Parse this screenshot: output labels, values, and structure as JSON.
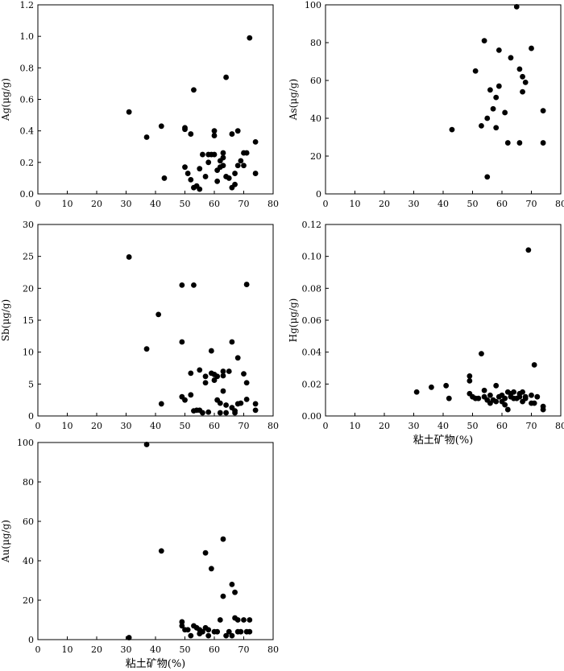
{
  "chart_data": [
    {
      "type": "scatter",
      "ylabel": "Ag(μg/g)",
      "xlabel": "",
      "xlim": [
        0,
        80
      ],
      "ylim": [
        0,
        1.2
      ],
      "xticks": [
        "0",
        "10",
        "20",
        "30",
        "40",
        "50",
        "60",
        "70",
        "80"
      ],
      "yticks": [
        "0.0",
        "0.2",
        "0.4",
        "0.6",
        "0.8",
        "1.0",
        "1.2"
      ],
      "points": [
        [
          31,
          0.52
        ],
        [
          37,
          0.36
        ],
        [
          42,
          0.43
        ],
        [
          43,
          0.1
        ],
        [
          50,
          0.42
        ],
        [
          50,
          0.41
        ],
        [
          50,
          0.17
        ],
        [
          51,
          0.13
        ],
        [
          52,
          0.38
        ],
        [
          52,
          0.09
        ],
        [
          53,
          0.66
        ],
        [
          53,
          0.04
        ],
        [
          54,
          0.05
        ],
        [
          55,
          0.03
        ],
        [
          55,
          0.16
        ],
        [
          56,
          0.25
        ],
        [
          57,
          0.11
        ],
        [
          58,
          0.2
        ],
        [
          58,
          0.25
        ],
        [
          59,
          0.25
        ],
        [
          60,
          0.37
        ],
        [
          60,
          0.4
        ],
        [
          60,
          0.25
        ],
        [
          61,
          0.15
        ],
        [
          61,
          0.08
        ],
        [
          62,
          0.21
        ],
        [
          62,
          0.17
        ],
        [
          63,
          0.26
        ],
        [
          63,
          0.18
        ],
        [
          63,
          0.23
        ],
        [
          64,
          0.11
        ],
        [
          64,
          0.74
        ],
        [
          65,
          0.1
        ],
        [
          66,
          0.38
        ],
        [
          66,
          0.04
        ],
        [
          67,
          0.06
        ],
        [
          67,
          0.13
        ],
        [
          68,
          0.4
        ],
        [
          68,
          0.18
        ],
        [
          69,
          0.21
        ],
        [
          70,
          0.26
        ],
        [
          70,
          0.18
        ],
        [
          71,
          0.26
        ],
        [
          72,
          0.99
        ],
        [
          74,
          0.33
        ],
        [
          74,
          0.13
        ]
      ]
    },
    {
      "type": "scatter",
      "ylabel": "As(μg/g)",
      "xlabel": "",
      "xlim": [
        0,
        80
      ],
      "ylim": [
        0,
        100
      ],
      "xticks": [
        "0",
        "10",
        "20",
        "30",
        "40",
        "50",
        "60",
        "70",
        "80"
      ],
      "yticks": [
        "0",
        "20",
        "40",
        "60",
        "80",
        "100"
      ],
      "points": [
        [
          43,
          34
        ],
        [
          51,
          65
        ],
        [
          53,
          36
        ],
        [
          54,
          81
        ],
        [
          55,
          40
        ],
        [
          55,
          9
        ],
        [
          56,
          55
        ],
        [
          57,
          45
        ],
        [
          58,
          35
        ],
        [
          58,
          51
        ],
        [
          59,
          57
        ],
        [
          59,
          76
        ],
        [
          61,
          43
        ],
        [
          62,
          27
        ],
        [
          63,
          72
        ],
        [
          65,
          99
        ],
        [
          66,
          27
        ],
        [
          66,
          66
        ],
        [
          67,
          62
        ],
        [
          67,
          54
        ],
        [
          68,
          59
        ],
        [
          70,
          77
        ],
        [
          74,
          44
        ],
        [
          74,
          27
        ]
      ]
    },
    {
      "type": "scatter",
      "ylabel": "Sb(μg/g)",
      "xlabel": "",
      "xlim": [
        0,
        80
      ],
      "ylim": [
        0,
        30
      ],
      "xticks": [
        "0",
        "10",
        "20",
        "30",
        "40",
        "50",
        "60",
        "70",
        "80"
      ],
      "yticks": [
        "0",
        "5",
        "10",
        "15",
        "20",
        "25",
        "30"
      ],
      "points": [
        [
          31,
          24.9
        ],
        [
          37,
          10.5
        ],
        [
          41,
          15.9
        ],
        [
          42,
          1.9
        ],
        [
          49,
          20.5
        ],
        [
          49,
          11.6
        ],
        [
          49,
          3.0
        ],
        [
          50,
          2.5
        ],
        [
          52,
          6.7
        ],
        [
          52,
          3.3
        ],
        [
          53,
          20.5
        ],
        [
          53,
          0.8
        ],
        [
          54,
          0.9
        ],
        [
          55,
          7.2
        ],
        [
          55,
          0.9
        ],
        [
          56,
          0.5
        ],
        [
          57,
          6.2
        ],
        [
          57,
          5.2
        ],
        [
          58,
          0.6
        ],
        [
          59,
          10.2
        ],
        [
          59,
          6.7
        ],
        [
          60,
          6.5
        ],
        [
          60,
          5.6
        ],
        [
          61,
          6.2
        ],
        [
          61,
          2.5
        ],
        [
          62,
          2.0
        ],
        [
          62,
          0.5
        ],
        [
          63,
          7.0
        ],
        [
          63,
          6.3
        ],
        [
          63,
          3.9
        ],
        [
          64,
          1.7
        ],
        [
          64,
          0.5
        ],
        [
          65,
          7.0
        ],
        [
          66,
          11.6
        ],
        [
          66,
          1.3
        ],
        [
          67,
          0.8
        ],
        [
          67,
          0.5
        ],
        [
          68,
          9.1
        ],
        [
          68,
          1.9
        ],
        [
          69,
          2.0
        ],
        [
          70,
          6.6
        ],
        [
          71,
          2.6
        ],
        [
          71,
          20.6
        ],
        [
          71,
          5.2
        ],
        [
          74,
          1.9
        ],
        [
          74,
          0.9
        ]
      ]
    },
    {
      "type": "scatter",
      "ylabel": "Hg(μg/g)",
      "xlabel": "粘土矿物(%)",
      "xlim": [
        0,
        80
      ],
      "ylim": [
        0,
        0.12
      ],
      "xticks": [
        "0",
        "10",
        "20",
        "30",
        "40",
        "50",
        "60",
        "70",
        "80"
      ],
      "yticks": [
        "0.00",
        "0.02",
        "0.04",
        "0.06",
        "0.08",
        "0.10",
        "0.12"
      ],
      "points": [
        [
          31,
          0.015
        ],
        [
          36,
          0.018
        ],
        [
          41,
          0.019
        ],
        [
          42,
          0.011
        ],
        [
          49,
          0.025
        ],
        [
          49,
          0.022
        ],
        [
          49,
          0.014
        ],
        [
          50,
          0.012
        ],
        [
          51,
          0.011
        ],
        [
          52,
          0.011
        ],
        [
          53,
          0.039
        ],
        [
          54,
          0.016
        ],
        [
          54,
          0.012
        ],
        [
          55,
          0.01
        ],
        [
          56,
          0.013
        ],
        [
          56,
          0.008
        ],
        [
          57,
          0.01
        ],
        [
          58,
          0.019
        ],
        [
          58,
          0.009
        ],
        [
          59,
          0.012
        ],
        [
          60,
          0.013
        ],
        [
          60,
          0.009
        ],
        [
          61,
          0.011
        ],
        [
          61,
          0.007
        ],
        [
          62,
          0.004
        ],
        [
          62,
          0.015
        ],
        [
          63,
          0.014
        ],
        [
          63,
          0.012
        ],
        [
          64,
          0.015
        ],
        [
          64,
          0.011
        ],
        [
          65,
          0.011
        ],
        [
          66,
          0.014
        ],
        [
          66,
          0.012
        ],
        [
          67,
          0.015
        ],
        [
          67,
          0.009
        ],
        [
          68,
          0.012
        ],
        [
          68,
          0.011
        ],
        [
          69,
          0.104
        ],
        [
          70,
          0.013
        ],
        [
          70,
          0.008
        ],
        [
          71,
          0.032
        ],
        [
          71,
          0.008
        ],
        [
          72,
          0.012
        ],
        [
          74,
          0.006
        ],
        [
          74,
          0.004
        ]
      ]
    },
    {
      "type": "scatter",
      "ylabel": "Au(μg/g)",
      "xlabel": "粘土矿物(%)",
      "xlim": [
        0,
        80
      ],
      "ylim": [
        0,
        100
      ],
      "xticks": [
        "0",
        "10",
        "20",
        "30",
        "40",
        "50",
        "60",
        "70",
        "80"
      ],
      "yticks": [
        "0",
        "20",
        "40",
        "60",
        "80",
        "100"
      ],
      "points": [
        [
          31,
          1
        ],
        [
          37,
          99
        ],
        [
          42,
          45
        ],
        [
          49,
          9
        ],
        [
          49,
          7
        ],
        [
          50,
          5
        ],
        [
          51,
          5
        ],
        [
          52,
          2
        ],
        [
          53,
          7
        ],
        [
          54,
          6
        ],
        [
          55,
          3
        ],
        [
          55,
          5
        ],
        [
          56,
          4
        ],
        [
          57,
          6
        ],
        [
          57,
          44
        ],
        [
          58,
          5
        ],
        [
          58,
          2
        ],
        [
          59,
          36
        ],
        [
          60,
          4
        ],
        [
          61,
          4
        ],
        [
          62,
          10
        ],
        [
          63,
          51
        ],
        [
          63,
          22
        ],
        [
          64,
          2
        ],
        [
          65,
          4
        ],
        [
          66,
          28
        ],
        [
          66,
          2
        ],
        [
          67,
          24
        ],
        [
          67,
          11
        ],
        [
          68,
          10
        ],
        [
          68,
          4
        ],
        [
          69,
          4
        ],
        [
          70,
          10
        ],
        [
          71,
          4
        ],
        [
          72,
          4
        ],
        [
          72,
          10
        ]
      ]
    }
  ]
}
